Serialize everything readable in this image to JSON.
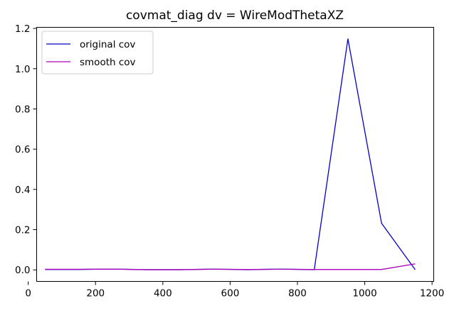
{
  "chart_data": {
    "type": "line",
    "title": "covmat_diag dv = WireModThetaXZ",
    "xlabel": "",
    "ylabel": "",
    "xlim": [
      25,
      1205
    ],
    "ylim": [
      -0.05734,
      1.20548
    ],
    "xticks": [
      0,
      200,
      400,
      600,
      800,
      1000,
      1200
    ],
    "yticks": [
      0.0,
      0.2,
      0.4,
      0.6,
      0.8,
      1.0,
      1.2
    ],
    "xtick_labels": [
      "0",
      "200",
      "400",
      "600",
      "800",
      "1000",
      "1200"
    ],
    "ytick_labels": [
      "0.0",
      "0.2",
      "0.4",
      "0.6",
      "0.8",
      "1.0",
      "1.2"
    ],
    "grid": false,
    "legend_position": "upper left",
    "x": [
      50,
      150,
      250,
      350,
      450,
      550,
      650,
      750,
      850,
      950,
      1050,
      1150
    ],
    "series": [
      {
        "name": "original cov",
        "color": "#0000cc",
        "values": [
          0.002,
          0.002,
          0.004,
          0.001,
          0.001,
          0.004,
          0.001,
          0.004,
          0.001,
          1.148,
          0.232,
          0.001
        ]
      },
      {
        "name": "smooth cov",
        "color": "#aa00bb",
        "values": [
          0.003,
          0.003,
          0.004,
          0.001,
          0.001,
          0.003,
          0.002,
          0.003,
          0.002,
          0.002,
          0.002,
          0.03
        ]
      }
    ]
  }
}
